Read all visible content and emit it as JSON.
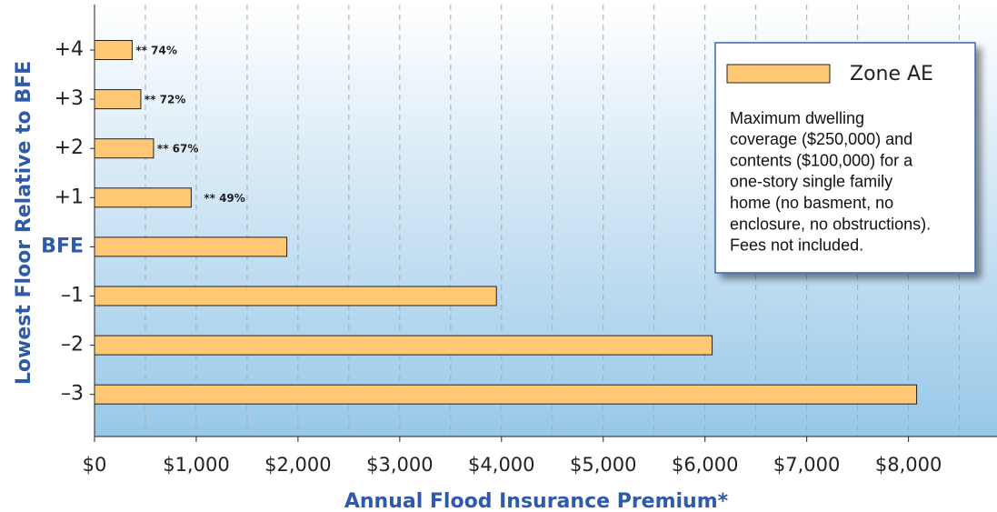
{
  "chart_data": {
    "type": "hbar",
    "x_label": "Annual Flood Insurance Premium*",
    "y_label": "Lowest Floor Relative to BFE",
    "categories": [
      "+4",
      "+3",
      "+2",
      "+1",
      "BFE",
      "–1",
      "–2",
      "–3"
    ],
    "series": [
      {
        "name": "Zone AE",
        "color": "#fec874",
        "values": [
          370,
          455,
          580,
          950,
          1890,
          3950,
          6070,
          8080
        ]
      }
    ],
    "bar_notes": [
      "** 74%",
      "** 72%",
      "** 67%",
      "** 49%",
      null,
      null,
      null,
      null
    ],
    "legend_note": [
      "Maximum dwelling",
      "coverage ($250,000) and",
      "contents ($100,000) for a",
      "one-story single family",
      "home (no basment, no",
      "enclosure, no obstructions).",
      "Fees not included."
    ],
    "xlim": [
      0,
      8870
    ],
    "xticks": [
      {
        "value": 0,
        "label": "$0"
      },
      {
        "value": 1000,
        "label": "$1,000"
      },
      {
        "value": 2000,
        "label": "$2,000"
      },
      {
        "value": 3000,
        "label": "$3,000"
      },
      {
        "value": 4000,
        "label": "$4,000"
      },
      {
        "value": 5000,
        "label": "$5,000"
      },
      {
        "value": 6000,
        "label": "$6,000"
      },
      {
        "value": 7000,
        "label": "$7,000"
      },
      {
        "value": 8000,
        "label": "$8,000"
      }
    ],
    "minor_xticks": [
      500,
      1500,
      2500,
      3500,
      4500,
      5500,
      6500,
      7500,
      8500
    ],
    "grid": true,
    "legend": "upper right"
  }
}
